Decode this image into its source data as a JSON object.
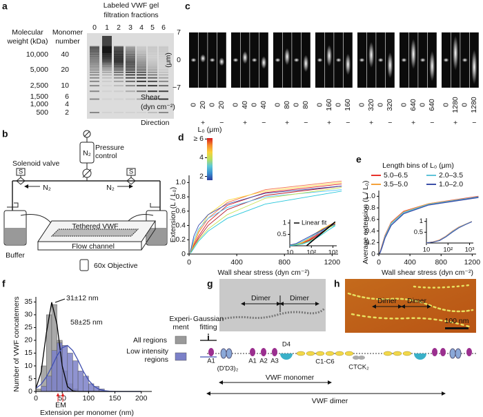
{
  "panel_a": {
    "label": "a",
    "title_lines": [
      "Labeled VWF gel",
      "filtration fractions"
    ],
    "lanes": [
      "0",
      "1",
      "2",
      "3",
      "4",
      "5",
      "6"
    ],
    "weight_header": [
      "Molecular",
      "weight (kDa)"
    ],
    "monomer_header": [
      "Monomer",
      "number"
    ],
    "weights": [
      "10,000",
      "5,000",
      "2,500",
      "1,500",
      "1,000",
      "500"
    ],
    "monomers": [
      "40",
      "20",
      "10",
      "6",
      "4",
      "2"
    ]
  },
  "panel_b": {
    "label": "b",
    "pressure_control": [
      "Pressure",
      "control"
    ],
    "n2_tank": "N₂",
    "n2_left": "N₂",
    "n2_right": "N₂",
    "solenoid_valve": "Solenoid valve",
    "valve_left": "S",
    "valve_right": "S",
    "buffer": "Buffer",
    "tethered": "Tethered VWF",
    "channel": "Flow channel",
    "objective": "60x Objective"
  },
  "panel_c": {
    "label": "c",
    "yticks": [
      "7",
      "0",
      "−7"
    ],
    "ylabel": "(μm)",
    "shear_label": [
      "Shear",
      "(dyn cm⁻²)"
    ],
    "shear": [
      "0",
      "20",
      "0",
      "20",
      "0",
      "40",
      "0",
      "40",
      "0",
      "80",
      "0",
      "80",
      "0",
      "160",
      "0",
      "160",
      "0",
      "320",
      "0",
      "320",
      "0",
      "640",
      "0",
      "640",
      "0",
      "1280",
      "0",
      "1280"
    ],
    "direction_label": "Direction",
    "directions": [
      "+",
      "−",
      "+",
      "−",
      "+",
      "−",
      "+",
      "−",
      "+",
      "−",
      "+",
      "−",
      "+",
      "−"
    ]
  },
  "chart_data": [
    {
      "label": "d",
      "type": "line",
      "xlabel": "Wall shear stress (dyn cm⁻²)",
      "ylabel": "Extension (L / L₀)",
      "x": [
        10,
        20,
        40,
        80,
        160,
        320,
        640,
        1280
      ],
      "xlim": [
        0,
        1250
      ],
      "xticks": [
        0,
        400,
        800,
        1200
      ],
      "ylim": [
        0,
        1.1
      ],
      "yticks": [
        0,
        0.2,
        0.4,
        0.6,
        0.8,
        {
          "value": 1,
          "label": "1.0"
        }
      ],
      "series": [
        {
          "color": "#d7191c",
          "values": [
            0.02,
            0.05,
            0.12,
            0.25,
            0.45,
            0.68,
            0.86,
            0.98
          ]
        },
        {
          "color": "#f46d43",
          "values": [
            0.02,
            0.06,
            0.14,
            0.3,
            0.5,
            0.72,
            0.9,
            1.02
          ]
        },
        {
          "color": "#b2182b",
          "values": [
            0.01,
            0.04,
            0.1,
            0.22,
            0.4,
            0.62,
            0.82,
            0.95
          ]
        },
        {
          "color": "#fdd835",
          "values": [
            0.03,
            0.07,
            0.16,
            0.32,
            0.55,
            0.75,
            0.88,
            1.0
          ]
        },
        {
          "color": "#4fc3f7",
          "values": [
            0.02,
            0.08,
            0.2,
            0.35,
            0.5,
            0.65,
            0.8,
            0.9
          ]
        },
        {
          "color": "#c6e04a",
          "values": [
            0.02,
            0.05,
            0.1,
            0.2,
            0.35,
            0.55,
            0.78,
            0.93
          ]
        },
        {
          "color": "#3949ab",
          "values": [
            0.03,
            0.1,
            0.25,
            0.4,
            0.55,
            0.7,
            0.85,
            0.95
          ]
        },
        {
          "color": "#26c6da",
          "values": [
            0.01,
            0.03,
            0.08,
            0.18,
            0.32,
            0.5,
            0.7,
            0.88
          ]
        }
      ],
      "colorbar": {
        "title": "L₀ (μm)",
        "colors": [
          "#2c3d9e",
          "#3b8fd0",
          "#5cc8d8",
          "#b8df5c",
          "#f9d13a",
          "#f58a2c",
          "#d7191c"
        ],
        "lim": [
          1.6,
          6.1
        ],
        "ticks": [
          2,
          4,
          {
            "value": 6,
            "label": "≥ 6"
          }
        ]
      },
      "inset": {
        "xscale": "log",
        "xlim": [
          10,
          1500
        ],
        "xticks": [
          10,
          {
            "value": 100,
            "label": "10²"
          },
          {
            "value": 1000,
            "label": "10³"
          }
        ],
        "ylim": [
          0,
          1.15
        ],
        "yticks": [
          0.5,
          1
        ],
        "fit": {
          "name": "Linear fit",
          "color": "#000000",
          "x": [
            60,
            1280
          ],
          "values": [
            0,
            1.05
          ]
        }
      }
    },
    {
      "label": "e",
      "type": "line",
      "xlabel": "Wall shear stress (dyn cm⁻²)",
      "ylabel": "Average extension (L / L₀)",
      "legend_title": "Length bins of L₀ (μm)",
      "x": [
        10,
        20,
        40,
        80,
        160,
        320,
        640,
        1280
      ],
      "xlim": [
        0,
        1250
      ],
      "xticks": [
        0,
        400,
        800,
        1200
      ],
      "ylim": [
        0,
        1.1
      ],
      "yticks": [
        0,
        0.2,
        0.4,
        0.6,
        0.8,
        {
          "value": 1,
          "label": "1.0"
        }
      ],
      "series": [
        {
          "name": "5.0–6.5",
          "color": "#e8312a",
          "values": [
            0.01,
            0.05,
            0.14,
            0.32,
            0.55,
            0.74,
            0.87,
            1.0
          ]
        },
        {
          "name": "3.5–5.0",
          "color": "#f4a13a",
          "values": [
            0.01,
            0.05,
            0.13,
            0.31,
            0.54,
            0.73,
            0.87,
            0.99
          ]
        },
        {
          "name": "2.0–3.5",
          "color": "#5ec3d8",
          "values": [
            0.01,
            0.04,
            0.12,
            0.3,
            0.53,
            0.72,
            0.86,
            0.99
          ]
        },
        {
          "name": "1.0–2.0",
          "color": "#3b4fa8",
          "values": [
            0.01,
            0.04,
            0.11,
            0.28,
            0.5,
            0.7,
            0.85,
            0.98
          ]
        }
      ],
      "inset": {
        "xscale": "log",
        "xlim": [
          10,
          1500
        ],
        "xticks": [
          10,
          {
            "value": 100,
            "label": "10²"
          },
          {
            "value": 1000,
            "label": "10³"
          }
        ],
        "ylim": [
          0,
          1.15
        ],
        "yticks": [
          0.5,
          1
        ]
      }
    },
    {
      "label": "f",
      "type": "histogram",
      "xlabel": "Extension per monomer (nm)",
      "ylabel": "Number of VWF concatemers",
      "bins": [
        0,
        10,
        20,
        30,
        40,
        50,
        60,
        70,
        80,
        90,
        100,
        110,
        120,
        130
      ],
      "xlim": [
        0,
        220
      ],
      "xticks": [
        0,
        50,
        100,
        150,
        200
      ],
      "ylim": [
        0,
        37
      ],
      "yticks": [
        0,
        5,
        10,
        15,
        20,
        25,
        30,
        35
      ],
      "series": [
        {
          "name": "All regions",
          "color": "#9a9a9a",
          "values": [
            1,
            10,
            30,
            34,
            20,
            8,
            3,
            1,
            0,
            0,
            0,
            0,
            0
          ]
        },
        {
          "name": "Low intensity regions",
          "color": "#7b80c8",
          "values": [
            0,
            2,
            6,
            16,
            19,
            18,
            15,
            12,
            8,
            6,
            3,
            2,
            1
          ]
        }
      ],
      "fits": [
        {
          "color": "#000000",
          "x": [
            0,
            10,
            20,
            30,
            40,
            50,
            60,
            70,
            80,
            90,
            100,
            110,
            120,
            130,
            140,
            150,
            160,
            170,
            180,
            190,
            200
          ],
          "values": [
            1.2,
            7.6,
            23,
            34.9,
            26.4,
            10,
            1.9,
            0.2,
            0,
            0,
            0,
            0,
            0,
            0,
            0,
            0,
            0,
            0,
            0,
            0,
            0
          ]
        },
        {
          "color": "#3f4fb0",
          "x": [
            0,
            10,
            20,
            30,
            40,
            50,
            60,
            70,
            80,
            90,
            100,
            110,
            120,
            130,
            140,
            150,
            160,
            170,
            180,
            190,
            200
          ],
          "values": [
            1.2,
            2.8,
            5.7,
            9.6,
            13.9,
            17.1,
            18,
            16,
            12.2,
            7.9,
            4.4,
            2.1,
            0.8,
            0.3,
            0.1,
            0,
            0,
            0,
            0,
            0,
            0
          ]
        }
      ],
      "legend_headers": [
        [
          "Experi-",
          "ment"
        ],
        [
          "Gaussian",
          "fitting"
        ]
      ],
      "annotations": [
        {
          "text": "31±12 nm",
          "color": "#000000"
        },
        {
          "text": "58±25 nm",
          "color": "#3f4fb0"
        }
      ],
      "em": {
        "text": "EM",
        "color": "#e02020"
      }
    }
  ],
  "panel_g": {
    "label": "g",
    "dimers": [
      "Dimer",
      "Dimer"
    ]
  },
  "panel_h": {
    "label": "h",
    "dimers": [
      "Dimer",
      "Dimer"
    ],
    "scale": "100 nm"
  },
  "panel_i": {
    "label": "i",
    "domains": [
      "A1",
      "(D'D3)₂",
      "A1",
      "A2",
      "A3",
      "D4",
      "C1-C6",
      "CTCK₂"
    ],
    "monomer": "VWF monomer",
    "dimer": "VWF dimer"
  }
}
